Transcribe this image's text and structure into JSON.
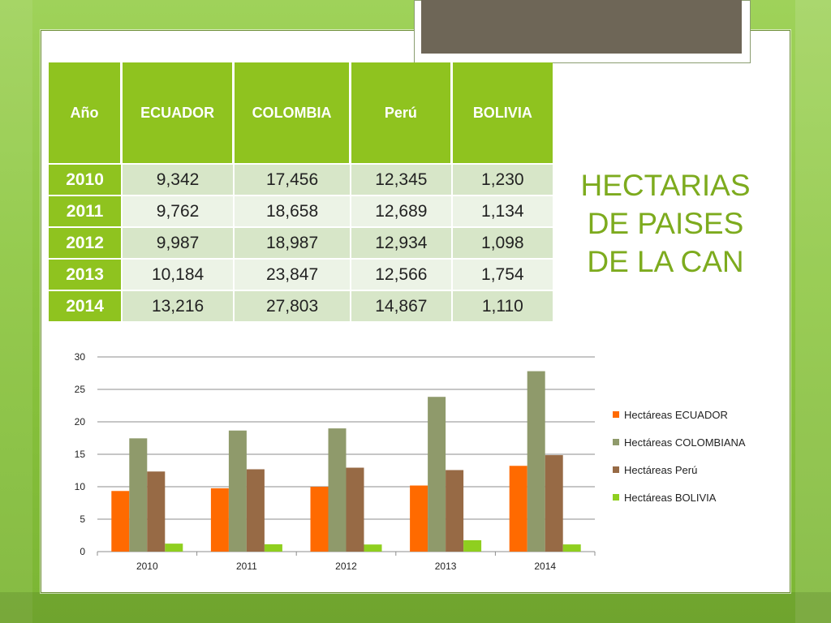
{
  "table": {
    "headers": [
      "Año",
      "ECUADOR",
      "COLOMBIA",
      "Perú",
      "BOLIVIA"
    ],
    "rows": [
      [
        "2010",
        "9,342",
        "17,456",
        "12,345",
        "1,230"
      ],
      [
        "2011",
        "9,762",
        "18,658",
        "12,689",
        "1,134"
      ],
      [
        "2012",
        "9,987",
        "18,987",
        "12,934",
        "1,098"
      ],
      [
        "2013",
        "10,184",
        "23,847",
        "12,566",
        "1,754"
      ],
      [
        "2014",
        "13,216",
        "27,803",
        "14,867",
        "1,110"
      ]
    ]
  },
  "side_title": {
    "lines": [
      "HECTARIAS",
      "DE PAISES",
      "DE LA CAN"
    ]
  },
  "chart_data": {
    "type": "bar",
    "categories": [
      "2010",
      "2011",
      "2012",
      "2013",
      "2014"
    ],
    "series": [
      {
        "name": "Hectáreas ECUADOR",
        "values": [
          9.342,
          9.762,
          9.987,
          10.184,
          13.216
        ],
        "color": "#ff6a00"
      },
      {
        "name": "Hectáreas COLOMBIANA",
        "values": [
          17.456,
          18.658,
          18.987,
          23.847,
          27.803
        ],
        "color": "#8f9a6b"
      },
      {
        "name": "Hectáreas  Perú",
        "values": [
          12.345,
          12.689,
          12.934,
          12.566,
          14.867
        ],
        "color": "#976a45"
      },
      {
        "name": "Hectáreas BOLIVIA",
        "values": [
          1.23,
          1.134,
          1.098,
          1.754,
          1.11
        ],
        "color": "#8fcf1f"
      }
    ],
    "yticks": [
      "0",
      "5",
      "10",
      "15",
      "20",
      "25",
      "30"
    ],
    "ylim": [
      0,
      30
    ],
    "grid": true,
    "legend_position": "right"
  },
  "colors": {
    "header_green": "#8fc31f",
    "title_green": "#7dab1e",
    "title_bar": "#6e6657"
  }
}
